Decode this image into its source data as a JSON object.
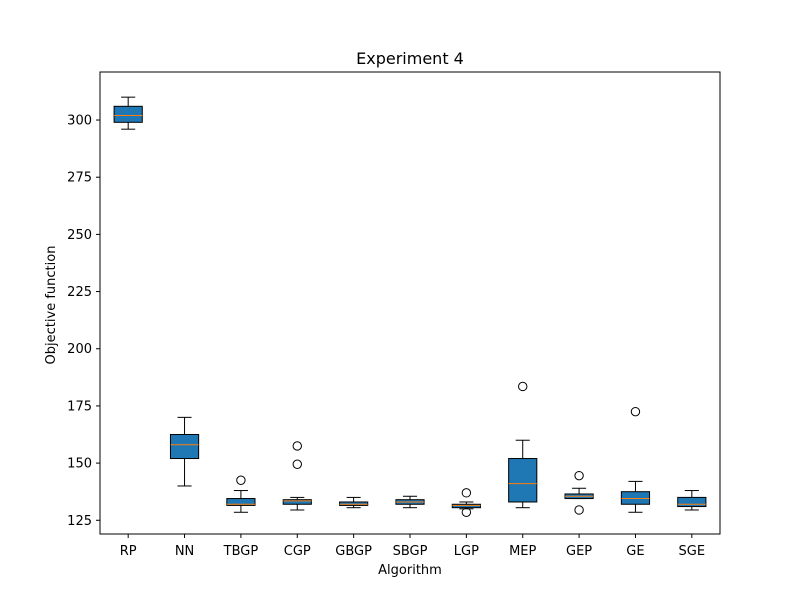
{
  "chart_data": {
    "type": "box",
    "title": "Experiment 4",
    "xlabel": "Algorithm",
    "ylabel": "Objective function",
    "ylim": [
      119,
      321
    ],
    "yticks": [
      125,
      150,
      175,
      200,
      225,
      250,
      275,
      300
    ],
    "grid": false,
    "colors": {
      "box_fill": "#1f77b4",
      "median": "#ff7f0e",
      "line": "#000000"
    },
    "categories": [
      "RP",
      "NN",
      "TBGP",
      "CGP",
      "GBGP",
      "SBGP",
      "LGP",
      "MEP",
      "GEP",
      "GE",
      "SGE"
    ],
    "boxes": [
      {
        "whislo": 296,
        "q1": 299,
        "med": 302,
        "q3": 306,
        "whishi": 310,
        "fliers": []
      },
      {
        "whislo": 140,
        "q1": 152,
        "med": 158,
        "q3": 162.5,
        "whishi": 170,
        "fliers": []
      },
      {
        "whislo": 128.5,
        "q1": 131.5,
        "med": 132,
        "q3": 134.5,
        "whishi": 138,
        "fliers": [
          142.5
        ]
      },
      {
        "whislo": 129.5,
        "q1": 132,
        "med": 133.5,
        "q3": 134,
        "whishi": 135,
        "fliers": [
          149.5,
          157.5
        ]
      },
      {
        "whislo": 130.5,
        "q1": 131.5,
        "med": 132,
        "q3": 133,
        "whishi": 135,
        "fliers": []
      },
      {
        "whislo": 130.5,
        "q1": 132,
        "med": 133,
        "q3": 134,
        "whishi": 135.5,
        "fliers": []
      },
      {
        "whislo": 130,
        "q1": 130.5,
        "med": 131.5,
        "q3": 132,
        "whishi": 133,
        "fliers": [
          128.5,
          137
        ]
      },
      {
        "whislo": 130.5,
        "q1": 133,
        "med": 141,
        "q3": 152,
        "whishi": 160,
        "fliers": [
          183.5
        ]
      },
      {
        "whislo": 134.5,
        "q1": 134.5,
        "med": 135.5,
        "q3": 136.5,
        "whishi": 139,
        "fliers": [
          129.5,
          144.5
        ]
      },
      {
        "whislo": 128.5,
        "q1": 132,
        "med": 134.5,
        "q3": 137.5,
        "whishi": 142,
        "fliers": [
          172.5
        ]
      },
      {
        "whislo": 129.5,
        "q1": 131,
        "med": 132,
        "q3": 135,
        "whishi": 138,
        "fliers": []
      }
    ]
  }
}
